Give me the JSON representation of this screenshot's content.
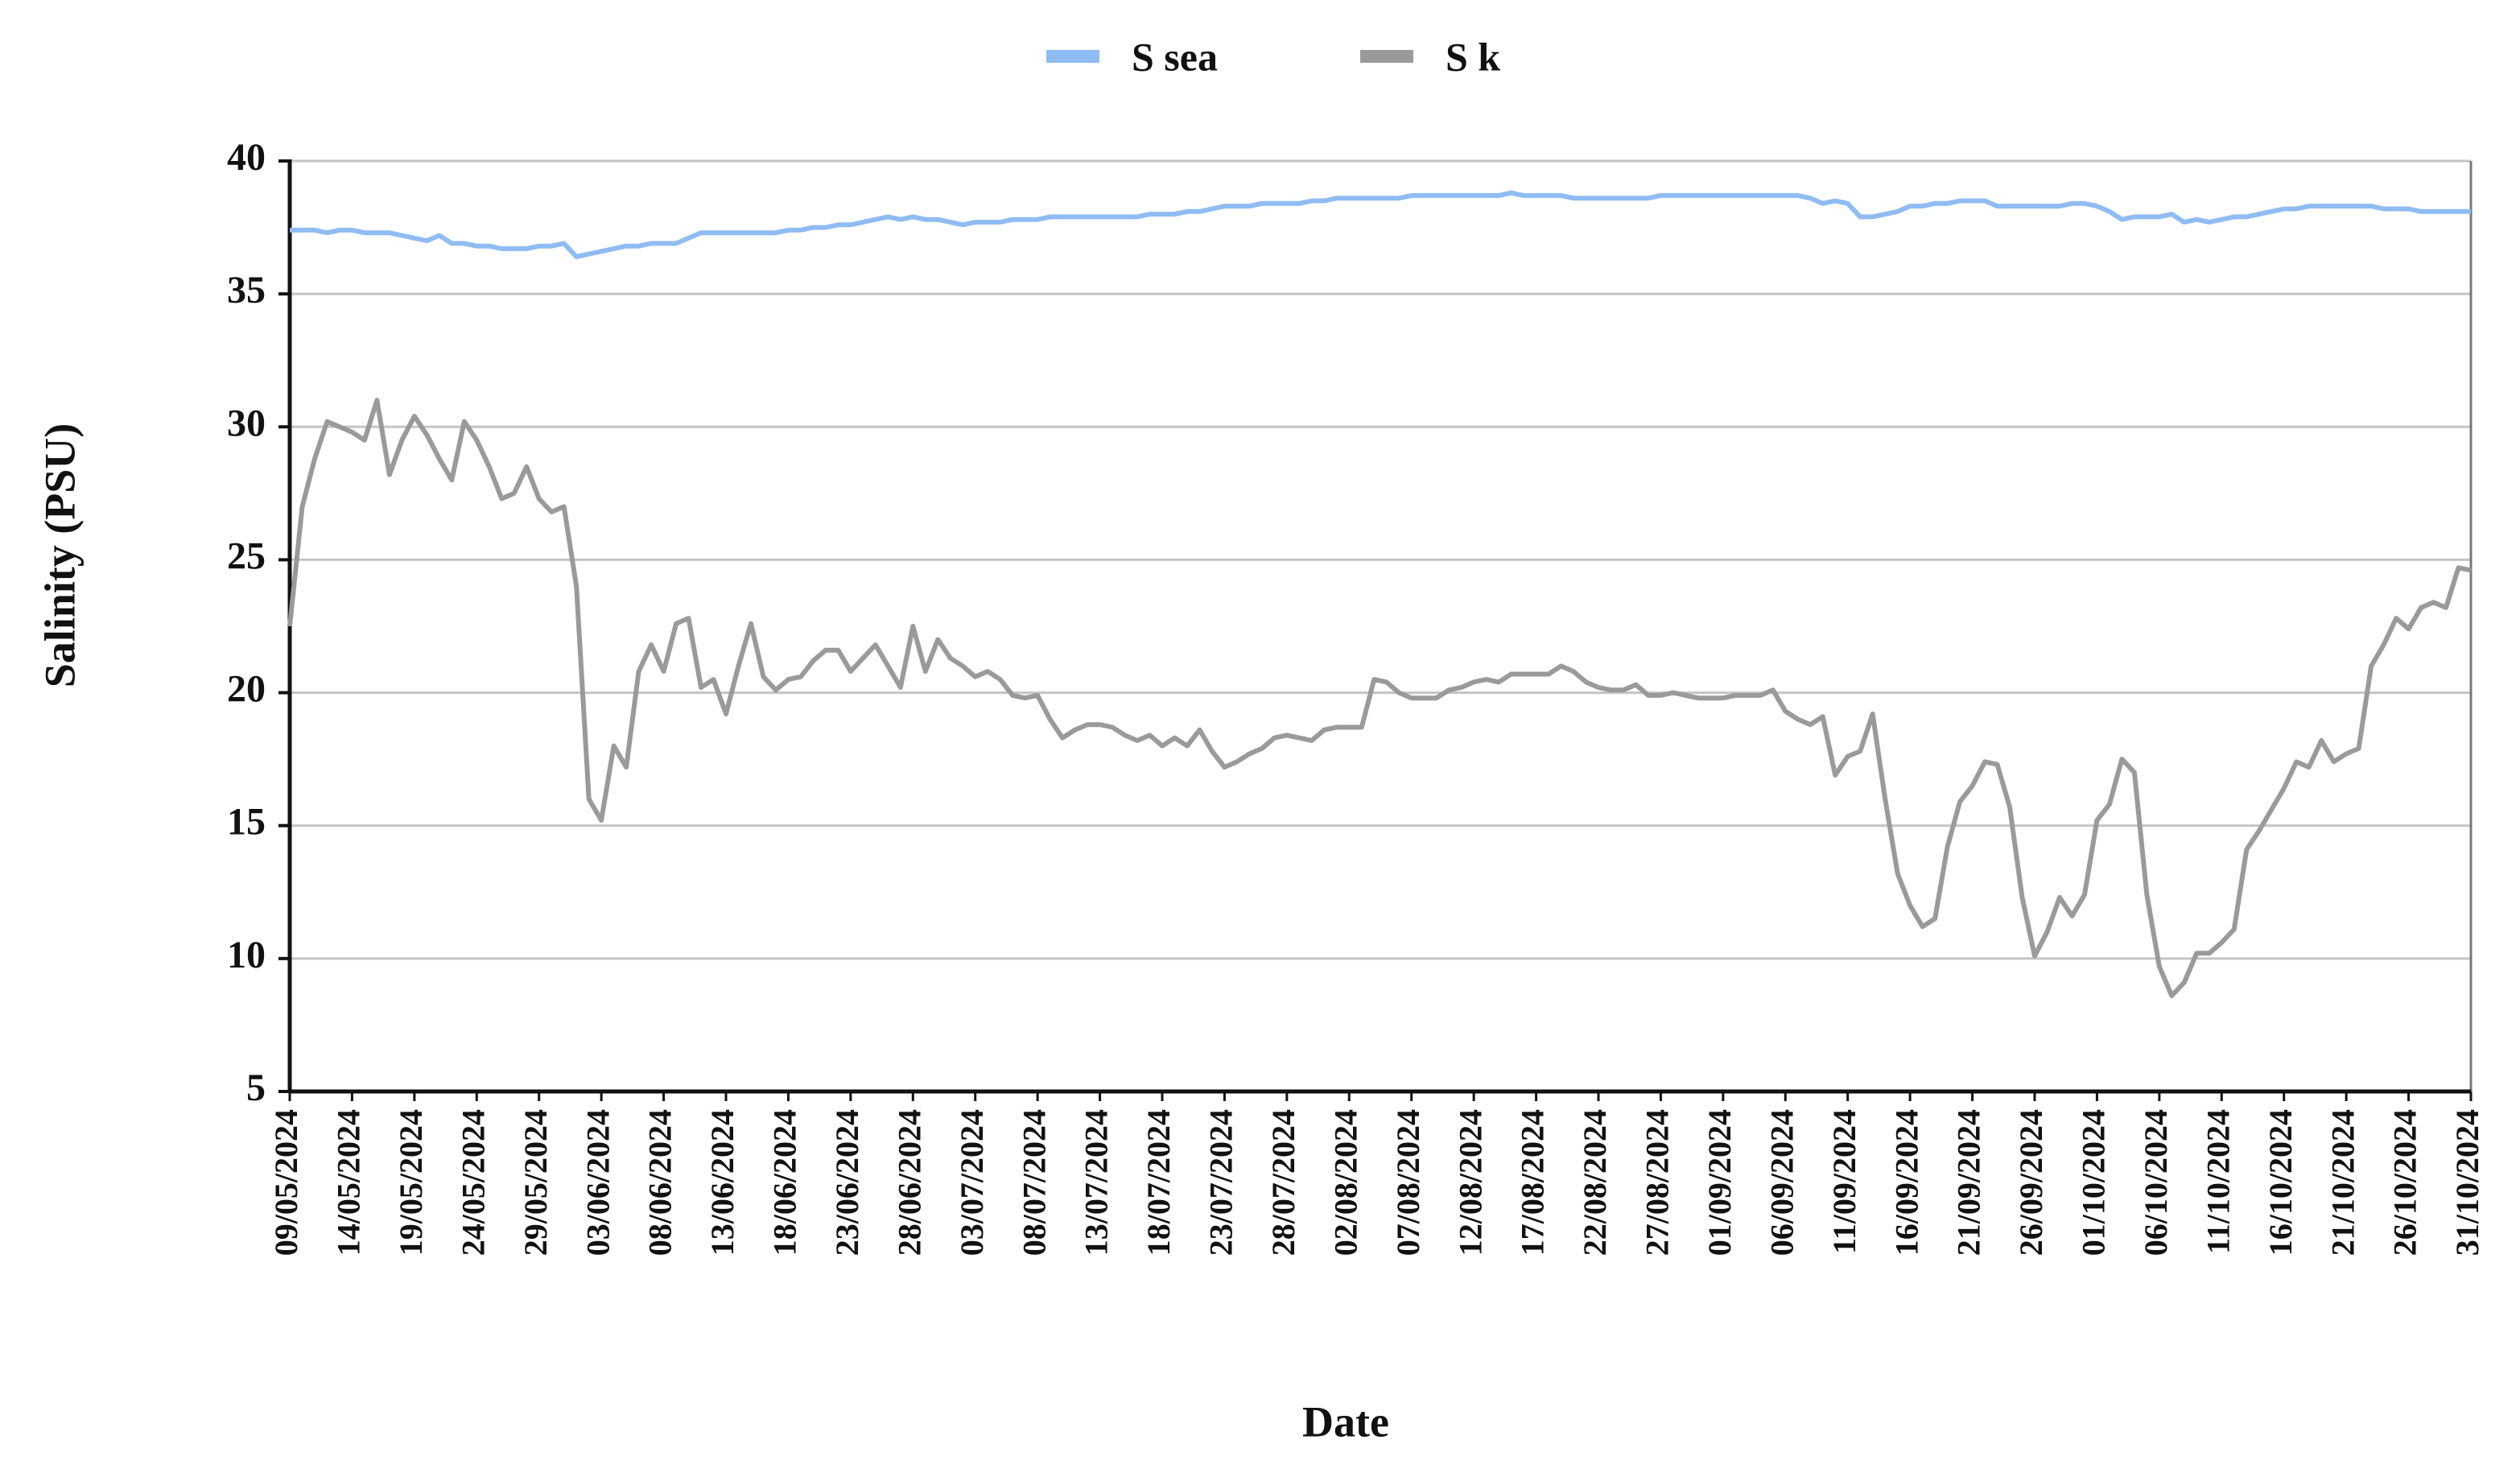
{
  "chart_data": {
    "type": "line",
    "x_label": "Date",
    "y_label": "Salinity (PSU)",
    "x": [
      "09/05/2024",
      "10/05/2024",
      "11/05/2024",
      "12/05/2024",
      "13/05/2024",
      "14/05/2024",
      "15/05/2024",
      "16/05/2024",
      "17/05/2024",
      "18/05/2024",
      "19/05/2024",
      "20/05/2024",
      "21/05/2024",
      "22/05/2024",
      "23/05/2024",
      "24/05/2024",
      "25/05/2024",
      "26/05/2024",
      "27/05/2024",
      "28/05/2024",
      "29/05/2024",
      "30/05/2024",
      "31/05/2024",
      "01/06/2024",
      "02/06/2024",
      "03/06/2024",
      "04/06/2024",
      "05/06/2024",
      "06/06/2024",
      "07/06/2024",
      "08/06/2024",
      "09/06/2024",
      "10/06/2024",
      "11/06/2024",
      "12/06/2024",
      "13/06/2024",
      "14/06/2024",
      "15/06/2024",
      "16/06/2024",
      "17/06/2024",
      "18/06/2024",
      "19/06/2024",
      "20/06/2024",
      "21/06/2024",
      "22/06/2024",
      "23/06/2024",
      "24/06/2024",
      "25/06/2024",
      "26/06/2024",
      "27/06/2024",
      "28/06/2024",
      "29/06/2024",
      "30/06/2024",
      "01/07/2024",
      "02/07/2024",
      "03/07/2024",
      "04/07/2024",
      "05/07/2024",
      "06/07/2024",
      "07/07/2024",
      "08/07/2024",
      "09/07/2024",
      "10/07/2024",
      "11/07/2024",
      "12/07/2024",
      "13/07/2024",
      "14/07/2024",
      "15/07/2024",
      "16/07/2024",
      "17/07/2024",
      "18/07/2024",
      "19/07/2024",
      "20/07/2024",
      "21/07/2024",
      "22/07/2024",
      "23/07/2024",
      "24/07/2024",
      "25/07/2024",
      "26/07/2024",
      "27/07/2024",
      "28/07/2024",
      "29/07/2024",
      "30/07/2024",
      "31/07/2024",
      "01/08/2024",
      "02/08/2024",
      "03/08/2024",
      "04/08/2024",
      "05/08/2024",
      "06/08/2024",
      "07/08/2024",
      "08/08/2024",
      "09/08/2024",
      "10/08/2024",
      "11/08/2024",
      "12/08/2024",
      "13/08/2024",
      "14/08/2024",
      "15/08/2024",
      "16/08/2024",
      "17/08/2024",
      "18/08/2024",
      "19/08/2024",
      "20/08/2024",
      "21/08/2024",
      "22/08/2024",
      "23/08/2024",
      "24/08/2024",
      "25/08/2024",
      "26/08/2024",
      "27/08/2024",
      "28/08/2024",
      "29/08/2024",
      "30/08/2024",
      "31/08/2024",
      "01/09/2024",
      "02/09/2024",
      "03/09/2024",
      "04/09/2024",
      "05/09/2024",
      "06/09/2024",
      "07/09/2024",
      "08/09/2024",
      "09/09/2024",
      "10/09/2024",
      "11/09/2024",
      "12/09/2024",
      "13/09/2024",
      "14/09/2024",
      "15/09/2024",
      "16/09/2024",
      "17/09/2024",
      "18/09/2024",
      "19/09/2024",
      "20/09/2024",
      "21/09/2024",
      "22/09/2024",
      "23/09/2024",
      "24/09/2024",
      "25/09/2024",
      "26/09/2024",
      "27/09/2024",
      "28/09/2024",
      "29/09/2024",
      "30/09/2024",
      "01/10/2024",
      "02/10/2024",
      "03/10/2024",
      "04/10/2024",
      "05/10/2024",
      "06/10/2024",
      "07/10/2024",
      "08/10/2024",
      "09/10/2024",
      "10/10/2024",
      "11/10/2024",
      "12/10/2024",
      "13/10/2024",
      "14/10/2024",
      "15/10/2024",
      "16/10/2024",
      "17/10/2024",
      "18/10/2024",
      "19/10/2024",
      "20/10/2024",
      "21/10/2024",
      "22/10/2024",
      "23/10/2024",
      "24/10/2024",
      "25/10/2024",
      "26/10/2024",
      "27/10/2024",
      "28/10/2024",
      "29/10/2024",
      "30/10/2024",
      "31/10/2024"
    ],
    "series": [
      {
        "name": "S sea",
        "color": "#8fbcf2",
        "values": [
          37.4,
          37.4,
          37.4,
          37.3,
          37.4,
          37.4,
          37.3,
          37.3,
          37.3,
          37.2,
          37.1,
          37.0,
          37.2,
          36.9,
          36.9,
          36.8,
          36.8,
          36.7,
          36.7,
          36.7,
          36.8,
          36.8,
          36.9,
          36.4,
          36.5,
          36.6,
          36.7,
          36.8,
          36.8,
          36.9,
          36.9,
          36.9,
          37.1,
          37.3,
          37.3,
          37.3,
          37.3,
          37.3,
          37.3,
          37.3,
          37.4,
          37.4,
          37.5,
          37.5,
          37.6,
          37.6,
          37.7,
          37.8,
          37.9,
          37.8,
          37.9,
          37.8,
          37.8,
          37.7,
          37.6,
          37.7,
          37.7,
          37.7,
          37.8,
          37.8,
          37.8,
          37.9,
          37.9,
          37.9,
          37.9,
          37.9,
          37.9,
          37.9,
          37.9,
          38.0,
          38.0,
          38.0,
          38.1,
          38.1,
          38.2,
          38.3,
          38.3,
          38.3,
          38.4,
          38.4,
          38.4,
          38.4,
          38.5,
          38.5,
          38.6,
          38.6,
          38.6,
          38.6,
          38.6,
          38.6,
          38.7,
          38.7,
          38.7,
          38.7,
          38.7,
          38.7,
          38.7,
          38.7,
          38.8,
          38.7,
          38.7,
          38.7,
          38.7,
          38.6,
          38.6,
          38.6,
          38.6,
          38.6,
          38.6,
          38.6,
          38.7,
          38.7,
          38.7,
          38.7,
          38.7,
          38.7,
          38.7,
          38.7,
          38.7,
          38.7,
          38.7,
          38.7,
          38.6,
          38.4,
          38.5,
          38.4,
          37.9,
          37.9,
          38.0,
          38.1,
          38.3,
          38.3,
          38.4,
          38.4,
          38.5,
          38.5,
          38.5,
          38.3,
          38.3,
          38.3,
          38.3,
          38.3,
          38.3,
          38.4,
          38.4,
          38.3,
          38.1,
          37.8,
          37.9,
          37.9,
          37.9,
          38.0,
          37.7,
          37.8,
          37.7,
          37.8,
          37.9,
          37.9,
          38.0,
          38.1,
          38.2,
          38.2,
          38.3,
          38.3,
          38.3,
          38.3,
          38.3,
          38.3,
          38.2,
          38.2,
          38.2,
          38.1,
          38.1,
          38.1,
          38.1,
          38.1
        ]
      },
      {
        "name": "S k",
        "color": "#9a9a9a",
        "values": [
          22.5,
          27,
          28.8,
          30.2,
          30,
          29.8,
          29.5,
          31,
          28.2,
          29.5,
          30.4,
          29.7,
          28.8,
          28,
          30.2,
          29.5,
          28.5,
          27.3,
          27.5,
          28.5,
          27.3,
          26.8,
          27,
          24,
          16,
          15.2,
          18,
          17.2,
          20.8,
          21.8,
          20.8,
          22.6,
          22.8,
          20.2,
          20.5,
          19.2,
          21,
          22.6,
          20.6,
          20.1,
          20.5,
          20.6,
          21.2,
          21.6,
          21.6,
          20.8,
          21.3,
          21.8,
          21,
          20.2,
          22.5,
          20.8,
          22,
          21.3,
          21,
          20.6,
          20.8,
          20.5,
          19.9,
          19.8,
          19.9,
          19,
          18.3,
          18.6,
          18.8,
          18.8,
          18.7,
          18.4,
          18.2,
          18.4,
          18,
          18.3,
          18,
          18.6,
          17.8,
          17.2,
          17.4,
          17.7,
          17.9,
          18.3,
          18.4,
          18.3,
          18.2,
          18.6,
          18.7,
          18.7,
          18.7,
          20.5,
          20.4,
          20,
          19.8,
          19.8,
          19.8,
          20.1,
          20.2,
          20.4,
          20.5,
          20.4,
          20.7,
          20.7,
          20.7,
          20.7,
          21,
          20.8,
          20.4,
          20.2,
          20.1,
          20.1,
          20.3,
          19.9,
          19.9,
          20,
          19.9,
          19.8,
          19.8,
          19.8,
          19.9,
          19.9,
          19.9,
          20.1,
          19.3,
          19,
          18.8,
          19.1,
          16.9,
          17.6,
          17.8,
          19.2,
          16,
          13.2,
          12,
          11.2,
          11.5,
          14.2,
          15.9,
          16.5,
          17.4,
          17.3,
          15.7,
          12.3,
          10.1,
          11,
          12.3,
          11.6,
          12.4,
          15.2,
          15.8,
          17.5,
          17,
          12.4,
          9.7,
          8.6,
          9.1,
          10.2,
          10.2,
          10.6,
          11.1,
          14.1,
          14.8,
          15.6,
          16.4,
          17.4,
          17.2,
          18.2,
          17.4,
          17.7,
          17.9,
          21,
          21.8,
          22.8,
          22.4,
          23.2,
          23.4,
          23.2,
          24.7,
          24.6
        ]
      }
    ],
    "ylim": [
      5,
      40
    ],
    "yticks": [
      5,
      10,
      15,
      20,
      25,
      30,
      35,
      40
    ],
    "grid": true
  }
}
